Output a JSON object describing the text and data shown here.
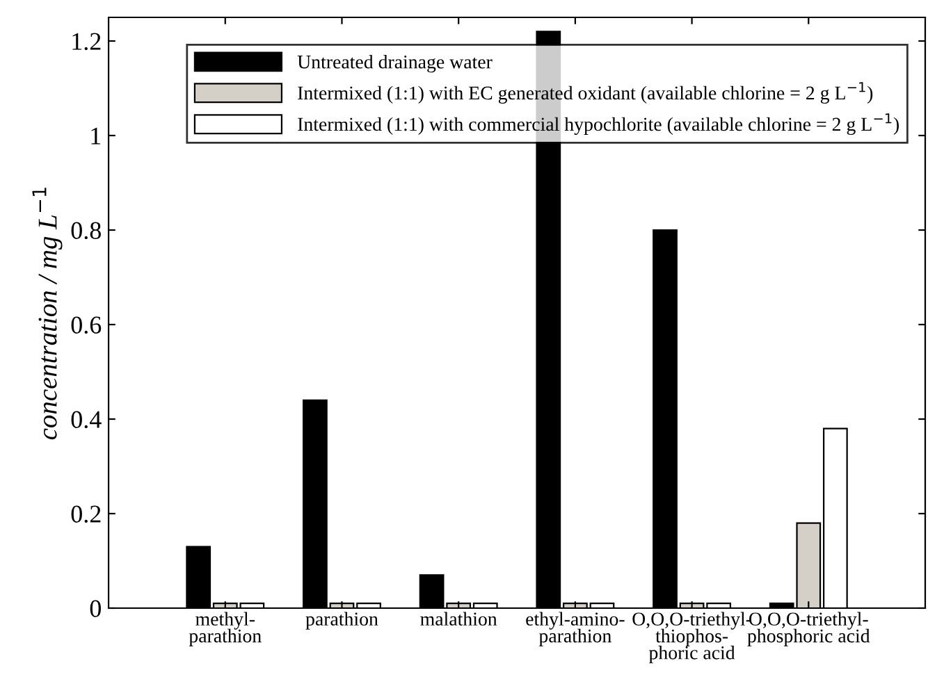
{
  "chart_data": {
    "type": "bar",
    "categories": [
      "methyl-\nparathion",
      "parathion",
      "malathion",
      "ethyl-amino-\nparathion",
      "O,O,O-triethyl-\nthiophos-\nphoric acid",
      "O,O,O-triethyl-\nphosphoric acid"
    ],
    "series": [
      {
        "name": "Untreated drainage water",
        "color": "#000000",
        "values": [
          0.13,
          0.44,
          0.07,
          1.22,
          0.8,
          0.01
        ]
      },
      {
        "name": "Intermixed (1:1) with EC generated oxidant (available chlorine = 2 g L$^{−1}$)",
        "color": "#d4d0c8",
        "values": [
          0.01,
          0.01,
          0.01,
          0.01,
          0.01,
          0.18
        ]
      },
      {
        "name": "Intermixed (1:1) with commercial hypochlorite (available chlorine = 2 g L$^{−1}$)",
        "color": "#ffffff",
        "values": [
          0.01,
          0.01,
          0.01,
          0.01,
          0.01,
          0.38
        ]
      }
    ],
    "ylabel": "concentration / mg L$^{−1}$",
    "ylim": [
      0,
      1.25
    ],
    "yticks": [
      0,
      0.2,
      0.4,
      0.6,
      0.8,
      1,
      1.2
    ],
    "grid": false,
    "legend": "top right"
  }
}
